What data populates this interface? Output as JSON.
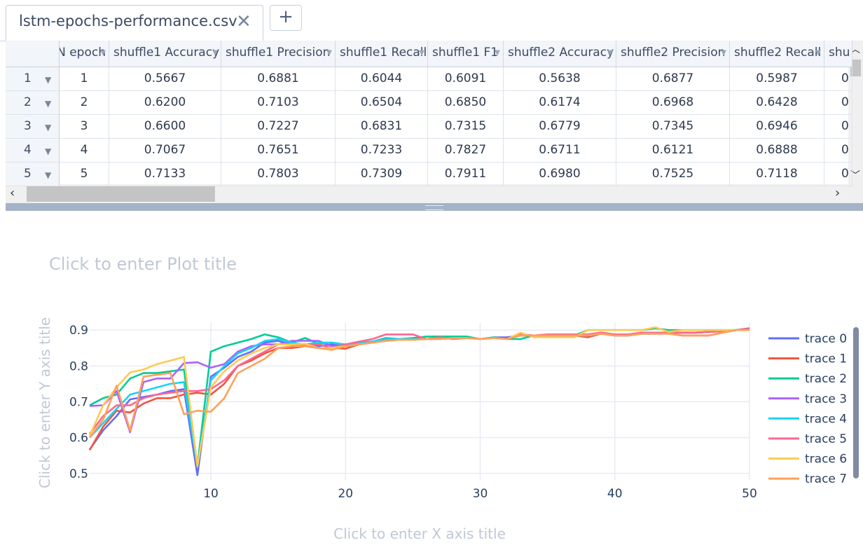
{
  "tab": {
    "title": "lstm-epochs-performance.csv",
    "close_glyph": "✕",
    "add_glyph": "+"
  },
  "table": {
    "headers": [
      "N epoch",
      "shuffle1 Accuracy",
      "shuffle1 Precision",
      "shuffle1 Recall",
      "shuffle1 F1",
      "shuffle2 Accuracy",
      "shuffle2 Precision",
      "shuffle2 Recall",
      "shu"
    ],
    "rows": [
      [
        "1",
        "1",
        "0.5667",
        "0.6881",
        "0.6044",
        "0.6091",
        "0.5638",
        "0.6877",
        "0.5987",
        "0"
      ],
      [
        "2",
        "2",
        "0.6200",
        "0.7103",
        "0.6504",
        "0.6850",
        "0.6174",
        "0.6968",
        "0.6428",
        "0"
      ],
      [
        "3",
        "3",
        "0.6600",
        "0.7227",
        "0.6831",
        "0.7315",
        "0.6779",
        "0.7345",
        "0.6946",
        "0"
      ],
      [
        "4",
        "4",
        "0.7067",
        "0.7651",
        "0.7233",
        "0.7827",
        "0.6711",
        "0.6121",
        "0.6888",
        "0"
      ],
      [
        "5",
        "5",
        "0.7133",
        "0.7803",
        "0.7309",
        "0.7911",
        "0.6980",
        "0.7525",
        "0.7118",
        "0"
      ]
    ]
  },
  "plot": {
    "title_placeholder": "Click to enter Plot title",
    "xaxis_placeholder": "Click to enter X axis title",
    "yaxis_placeholder": "Click to enter Y axis title"
  },
  "chart_data": {
    "type": "line",
    "title": "",
    "xlabel": "",
    "ylabel": "",
    "xlim": [
      1,
      50
    ],
    "ylim": [
      0.48,
      0.92
    ],
    "xticks": [
      10,
      20,
      30,
      40,
      50
    ],
    "yticks": [
      0.5,
      0.6,
      0.7,
      0.8,
      0.9
    ],
    "grid": true,
    "legend": "right",
    "colors": [
      "#636efa",
      "#EF553B",
      "#00cc96",
      "#ab63fa",
      "#19d3f3",
      "#FF6692",
      "#FECB52",
      "#FFA15A"
    ],
    "x": [
      1,
      2,
      3,
      4,
      5,
      6,
      7,
      8,
      9,
      10,
      11,
      12,
      13,
      14,
      15,
      16,
      17,
      18,
      19,
      20,
      21,
      22,
      23,
      24,
      25,
      26,
      27,
      28,
      29,
      30,
      31,
      32,
      33,
      34,
      35,
      36,
      37,
      38,
      39,
      40,
      41,
      42,
      43,
      44,
      45,
      46,
      47,
      48,
      49,
      50
    ],
    "series": [
      {
        "name": "trace 0",
        "values": [
          0.5667,
          0.62,
          0.66,
          0.7067,
          0.7133,
          0.72,
          0.73,
          0.735,
          0.495,
          0.77,
          0.795,
          0.825,
          0.84,
          0.865,
          0.87,
          0.86,
          0.86,
          0.855,
          0.86,
          0.855,
          0.86,
          0.865,
          0.87,
          0.875,
          0.875,
          0.875,
          0.875,
          0.878,
          0.88,
          0.875,
          0.88,
          0.88,
          0.885,
          0.885,
          0.885,
          0.885,
          0.885,
          0.885,
          0.89,
          0.885,
          0.885,
          0.89,
          0.89,
          0.893,
          0.893,
          0.893,
          0.895,
          0.897,
          0.9,
          0.905
        ]
      },
      {
        "name": "trace 1",
        "values": [
          0.565,
          0.63,
          0.675,
          0.67,
          0.695,
          0.71,
          0.71,
          0.72,
          0.725,
          0.72,
          0.75,
          0.8,
          0.815,
          0.835,
          0.85,
          0.85,
          0.855,
          0.85,
          0.85,
          0.848,
          0.86,
          0.865,
          0.87,
          0.873,
          0.873,
          0.875,
          0.875,
          0.878,
          0.878,
          0.875,
          0.878,
          0.875,
          0.885,
          0.885,
          0.885,
          0.885,
          0.885,
          0.88,
          0.89,
          0.885,
          0.885,
          0.89,
          0.89,
          0.89,
          0.885,
          0.885,
          0.885,
          0.893,
          0.9,
          0.905
        ]
      },
      {
        "name": "trace 2",
        "values": [
          0.69,
          0.71,
          0.72,
          0.765,
          0.78,
          0.78,
          0.785,
          0.79,
          0.52,
          0.84,
          0.855,
          0.865,
          0.875,
          0.888,
          0.88,
          0.865,
          0.878,
          0.862,
          0.865,
          0.858,
          0.862,
          0.868,
          0.878,
          0.875,
          0.878,
          0.882,
          0.882,
          0.882,
          0.882,
          0.875,
          0.88,
          0.875,
          0.875,
          0.885,
          0.885,
          0.885,
          0.885,
          0.9,
          0.9,
          0.9,
          0.9,
          0.9,
          0.905,
          0.9,
          0.9,
          0.9,
          0.9,
          0.9,
          0.9,
          0.9
        ]
      },
      {
        "name": "trace 3",
        "values": [
          0.688,
          0.69,
          0.73,
          0.615,
          0.755,
          0.765,
          0.765,
          0.808,
          0.81,
          0.795,
          0.805,
          0.84,
          0.855,
          0.86,
          0.86,
          0.87,
          0.87,
          0.87,
          0.855,
          0.86,
          0.865,
          0.868,
          0.875,
          0.875,
          0.875,
          0.875,
          0.875,
          0.878,
          0.878,
          0.875,
          0.878,
          0.875,
          0.888,
          0.885,
          0.888,
          0.888,
          0.888,
          0.888,
          0.893,
          0.888,
          0.888,
          0.893,
          0.893,
          0.893,
          0.893,
          0.893,
          0.895,
          0.897,
          0.9,
          0.903
        ]
      },
      {
        "name": "trace 4",
        "values": [
          0.6,
          0.64,
          0.68,
          0.72,
          0.73,
          0.74,
          0.75,
          0.755,
          0.52,
          0.76,
          0.8,
          0.835,
          0.85,
          0.87,
          0.875,
          0.865,
          0.86,
          0.865,
          0.865,
          0.86,
          0.865,
          0.868,
          0.875,
          0.875,
          0.875,
          0.875,
          0.875,
          0.878,
          0.878,
          0.875,
          0.878,
          0.875,
          0.885,
          0.885,
          0.885,
          0.885,
          0.885,
          0.885,
          0.89,
          0.885,
          0.885,
          0.89,
          0.89,
          0.893,
          0.893,
          0.893,
          0.895,
          0.897,
          0.9,
          0.903
        ]
      },
      {
        "name": "trace 5",
        "values": [
          0.61,
          0.66,
          0.69,
          0.69,
          0.71,
          0.72,
          0.725,
          0.73,
          0.73,
          0.735,
          0.76,
          0.8,
          0.82,
          0.84,
          0.86,
          0.86,
          0.86,
          0.86,
          0.85,
          0.86,
          0.868,
          0.875,
          0.888,
          0.888,
          0.888,
          0.875,
          0.88,
          0.875,
          0.878,
          0.875,
          0.878,
          0.875,
          0.888,
          0.885,
          0.888,
          0.888,
          0.888,
          0.888,
          0.893,
          0.888,
          0.888,
          0.893,
          0.893,
          0.893,
          0.893,
          0.893,
          0.895,
          0.897,
          0.9,
          0.903
        ]
      },
      {
        "name": "trace 6",
        "values": [
          0.605,
          0.69,
          0.74,
          0.782,
          0.79,
          0.805,
          0.815,
          0.825,
          0.52,
          0.74,
          0.785,
          0.815,
          0.835,
          0.85,
          0.86,
          0.86,
          0.862,
          0.85,
          0.85,
          0.855,
          0.86,
          0.865,
          0.87,
          0.873,
          0.873,
          0.875,
          0.875,
          0.878,
          0.878,
          0.875,
          0.878,
          0.875,
          0.893,
          0.88,
          0.88,
          0.88,
          0.88,
          0.9,
          0.9,
          0.9,
          0.9,
          0.9,
          0.908,
          0.895,
          0.9,
          0.9,
          0.9,
          0.9,
          0.9,
          0.9
        ]
      },
      {
        "name": "trace 7",
        "values": [
          0.6,
          0.65,
          0.745,
          0.62,
          0.77,
          0.775,
          0.78,
          0.665,
          0.675,
          0.672,
          0.71,
          0.78,
          0.8,
          0.82,
          0.85,
          0.855,
          0.855,
          0.85,
          0.845,
          0.855,
          0.86,
          0.865,
          0.87,
          0.873,
          0.873,
          0.875,
          0.875,
          0.878,
          0.878,
          0.875,
          0.878,
          0.875,
          0.885,
          0.885,
          0.885,
          0.885,
          0.885,
          0.885,
          0.89,
          0.885,
          0.885,
          0.89,
          0.89,
          0.89,
          0.885,
          0.885,
          0.885,
          0.893,
          0.9,
          0.9
        ]
      }
    ]
  }
}
